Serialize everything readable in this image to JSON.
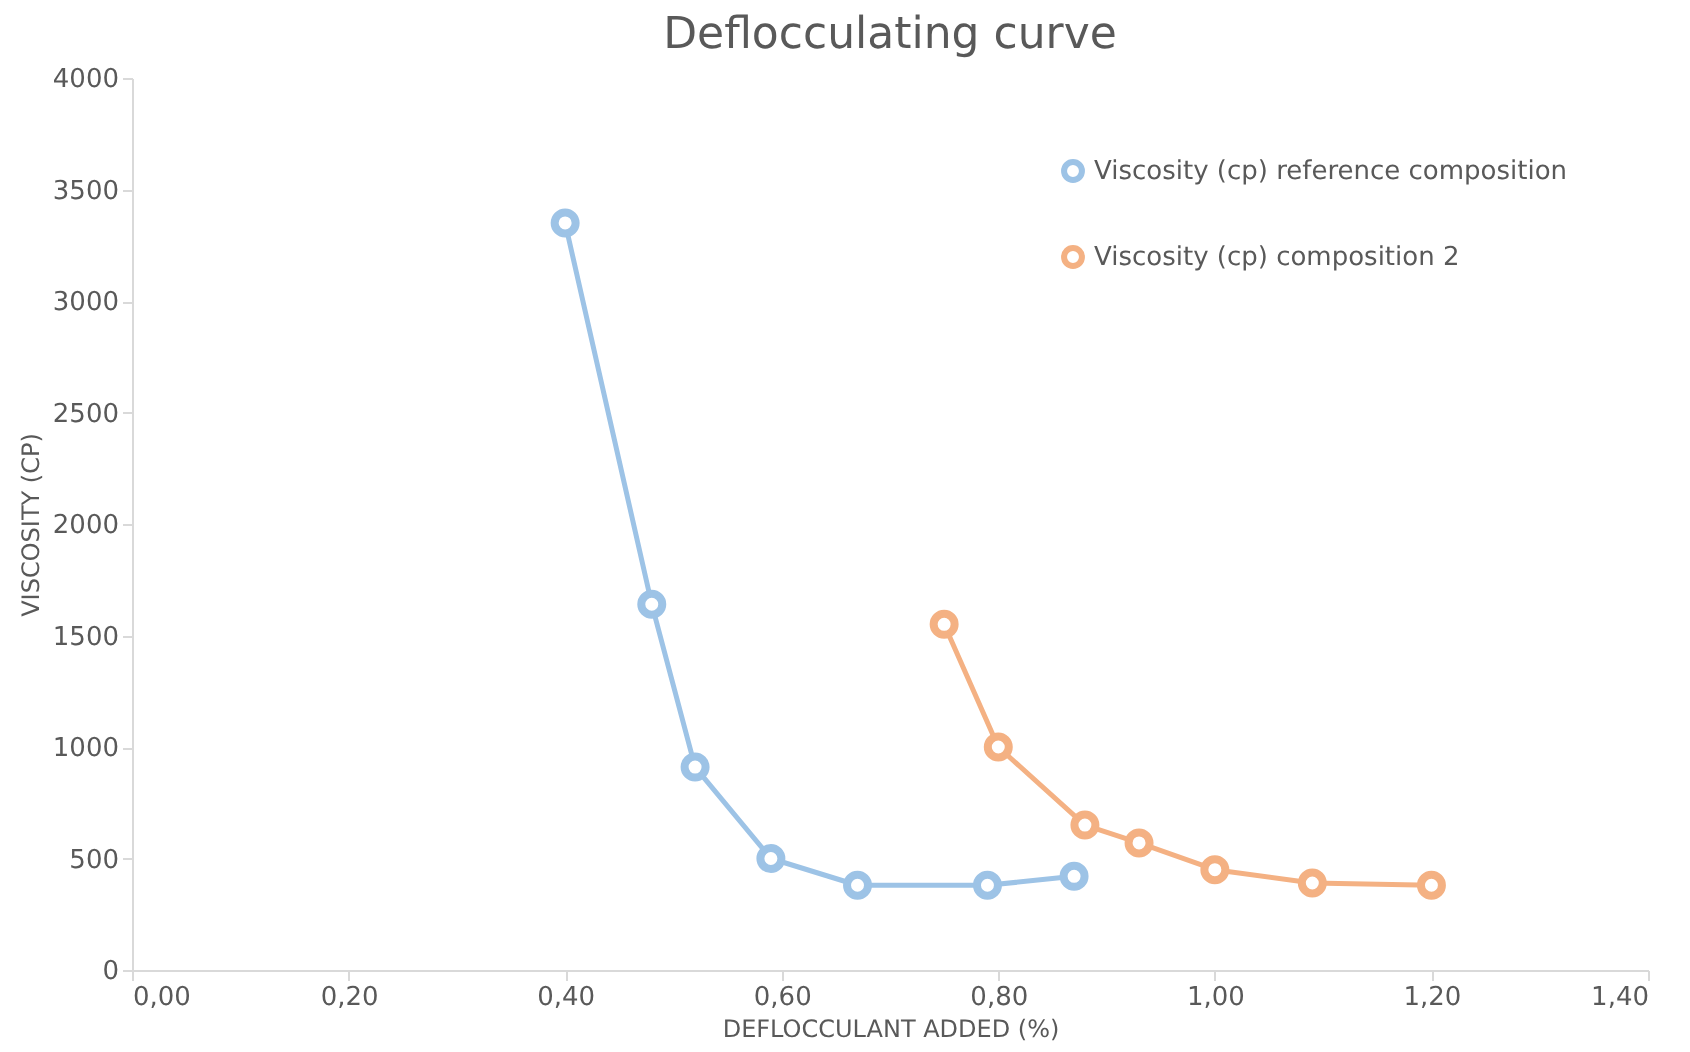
{
  "chart_data": {
    "type": "line",
    "title": "Deflocculating curve",
    "xlabel": "DEFLOCCULANT ADDED (%)",
    "ylabel": "VISCOSITY (CP)",
    "series": [
      {
        "name": "Viscosity (cp) reference composition",
        "color": "#9dc3e6",
        "x": [
          0.4,
          0.48,
          0.52,
          0.59,
          0.67,
          0.79,
          0.87
        ],
        "values": [
          3350,
          1640,
          910,
          500,
          380,
          380,
          420
        ]
      },
      {
        "name": "Viscosity (cp) composition 2",
        "color": "#f4b183",
        "x": [
          0.75,
          0.8,
          0.88,
          0.93,
          1.0,
          1.09,
          1.2
        ],
        "values": [
          1550,
          1000,
          650,
          570,
          450,
          390,
          380
        ]
      }
    ],
    "xlim": [
      0,
      1.4
    ],
    "xticks": [
      {
        "value": 0,
        "label": "0,00"
      },
      {
        "value": 0.2,
        "label": "0,20"
      },
      {
        "value": 0.4,
        "label": "0,40"
      },
      {
        "value": 0.6,
        "label": "0,60"
      },
      {
        "value": 0.8,
        "label": "0,80"
      },
      {
        "value": 1,
        "label": "1,00"
      },
      {
        "value": 1.2,
        "label": "1,20"
      },
      {
        "value": 1.4,
        "label": "1,40"
      }
    ],
    "ylim": [
      0,
      4000
    ],
    "yticks": [
      0,
      500,
      1000,
      1500,
      2000,
      2500,
      3000,
      3500,
      4000
    ],
    "grid": false,
    "legend": "top right",
    "marker": "circle",
    "line_style": "solid"
  }
}
